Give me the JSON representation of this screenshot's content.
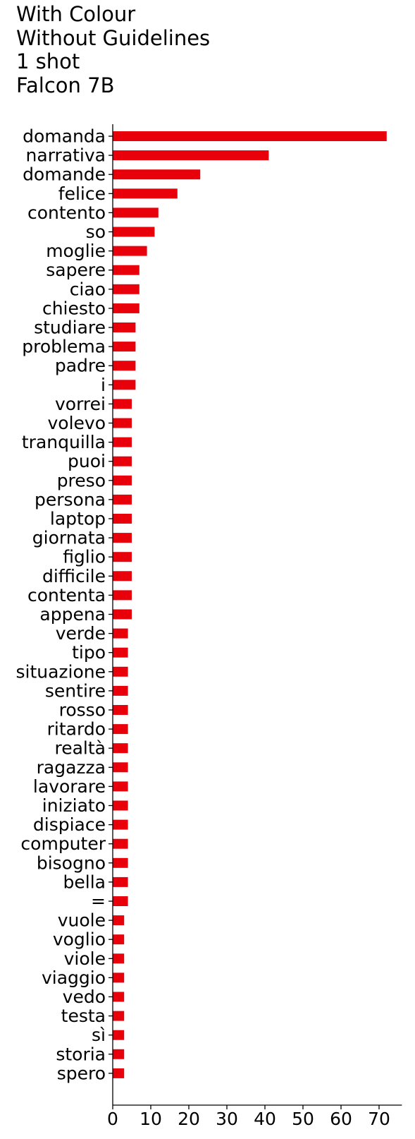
{
  "chart_data": {
    "type": "bar",
    "orientation": "horizontal",
    "title_lines": [
      "With Colour",
      "Without Guidelines",
      "1 shot",
      "Falcon 7B"
    ],
    "xlabel": "",
    "ylabel": "",
    "xlim": [
      0,
      76
    ],
    "x_ticks": [
      0,
      10,
      20,
      30,
      40,
      50,
      60,
      70
    ],
    "grid": false,
    "legend": "none",
    "bar_color": "#e8000b",
    "categories": [
      "domanda",
      "narrativa",
      "domande",
      "felice",
      "contento",
      "so",
      "moglie",
      "sapere",
      "ciao",
      "chiesto",
      "studiare",
      "problema",
      "padre",
      "i",
      "vorrei",
      "volevo",
      "tranquilla",
      "puoi",
      "preso",
      "persona",
      "laptop",
      "giornata",
      "figlio",
      "difficile",
      "contenta",
      "appena",
      "verde",
      "tipo",
      "situazione",
      "sentire",
      "rosso",
      "ritardo",
      "realtà",
      "ragazza",
      "lavorare",
      "iniziato",
      "dispiace",
      "computer",
      "bisogno",
      "bella",
      "=",
      "vuole",
      "voglio",
      "viole",
      "viaggio",
      "vedo",
      "testa",
      "sì",
      "storia",
      "spero"
    ],
    "values": [
      72,
      41,
      23,
      17,
      12,
      11,
      9,
      7,
      7,
      7,
      6,
      6,
      6,
      6,
      5,
      5,
      5,
      5,
      5,
      5,
      5,
      5,
      5,
      5,
      5,
      5,
      4,
      4,
      4,
      4,
      4,
      4,
      4,
      4,
      4,
      4,
      4,
      4,
      4,
      4,
      4,
      3,
      3,
      3,
      3,
      3,
      3,
      3,
      3,
      3
    ]
  }
}
